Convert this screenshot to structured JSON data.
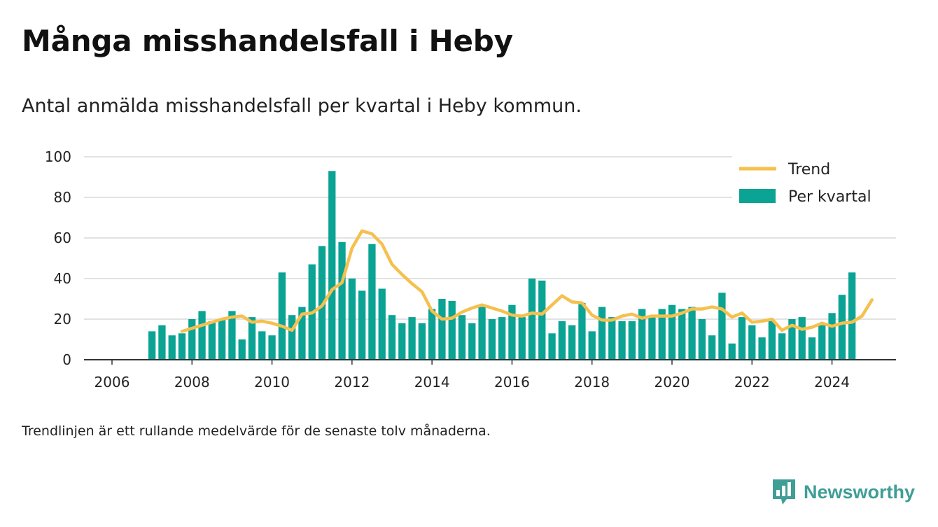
{
  "title": "Många misshandelsfall i Heby",
  "subtitle": "Antal anmälda misshandelsfall per kvartal i Heby kommun.",
  "footnote": "Trendlinjen är ett rullande medelvärde för de senaste tolv månaderna.",
  "brand": {
    "name": "Newsworthy",
    "icon": "bar-chart-logo-icon",
    "color": "#3f9e96"
  },
  "chart_data": {
    "type": "bar",
    "x_range": [
      2005.3,
      2025.6
    ],
    "ylim": [
      0,
      100
    ],
    "y_ticks": [
      0,
      20,
      40,
      60,
      80,
      100
    ],
    "x_ticks": [
      2006,
      2008,
      2010,
      2012,
      2014,
      2016,
      2018,
      2020,
      2022,
      2024
    ],
    "grid": true,
    "legend_position": "top-right",
    "bar_color": "#0aa394",
    "trend_color": "#f5c04e",
    "series": [
      {
        "name": "Per kvartal",
        "type": "bar",
        "start_year": 2007,
        "values": [
          14,
          17,
          12,
          13,
          20,
          24,
          19,
          20,
          24,
          10,
          21,
          14,
          12,
          43,
          22,
          26,
          47,
          56,
          93,
          58,
          40,
          34,
          57,
          35,
          22,
          18,
          21,
          18,
          25,
          30,
          29,
          22,
          18,
          26,
          20,
          21,
          27,
          21,
          40,
          39,
          13,
          19,
          17,
          28,
          14,
          26,
          21,
          19,
          19,
          25,
          21,
          25,
          27,
          25,
          26,
          20,
          12,
          33,
          8,
          21,
          17,
          11,
          19,
          13,
          20,
          21,
          11,
          17,
          23,
          32,
          43
        ]
      },
      {
        "name": "Trend",
        "type": "line",
        "start_year": 2007.75,
        "values": [
          14,
          15.5,
          17,
          18.5,
          20,
          21,
          21.5,
          18.5,
          19,
          18,
          16.5,
          14.5,
          22.5,
          23,
          26.5,
          34.5,
          38,
          55,
          63.5,
          62,
          57,
          47,
          42,
          37.5,
          33.5,
          24,
          20,
          20.5,
          23.5,
          25.5,
          27,
          25.5,
          24,
          22,
          21.5,
          23,
          22.5,
          27,
          31.5,
          28.5,
          28,
          22,
          19.5,
          19.5,
          21.5,
          22.5,
          20.5,
          21.5,
          21.5,
          21.5,
          23,
          25,
          25,
          26,
          25,
          21,
          23,
          18.5,
          19,
          20,
          14.5,
          17,
          15,
          16,
          18,
          16.5,
          18,
          18.5,
          21.5,
          29.5
        ]
      }
    ]
  }
}
